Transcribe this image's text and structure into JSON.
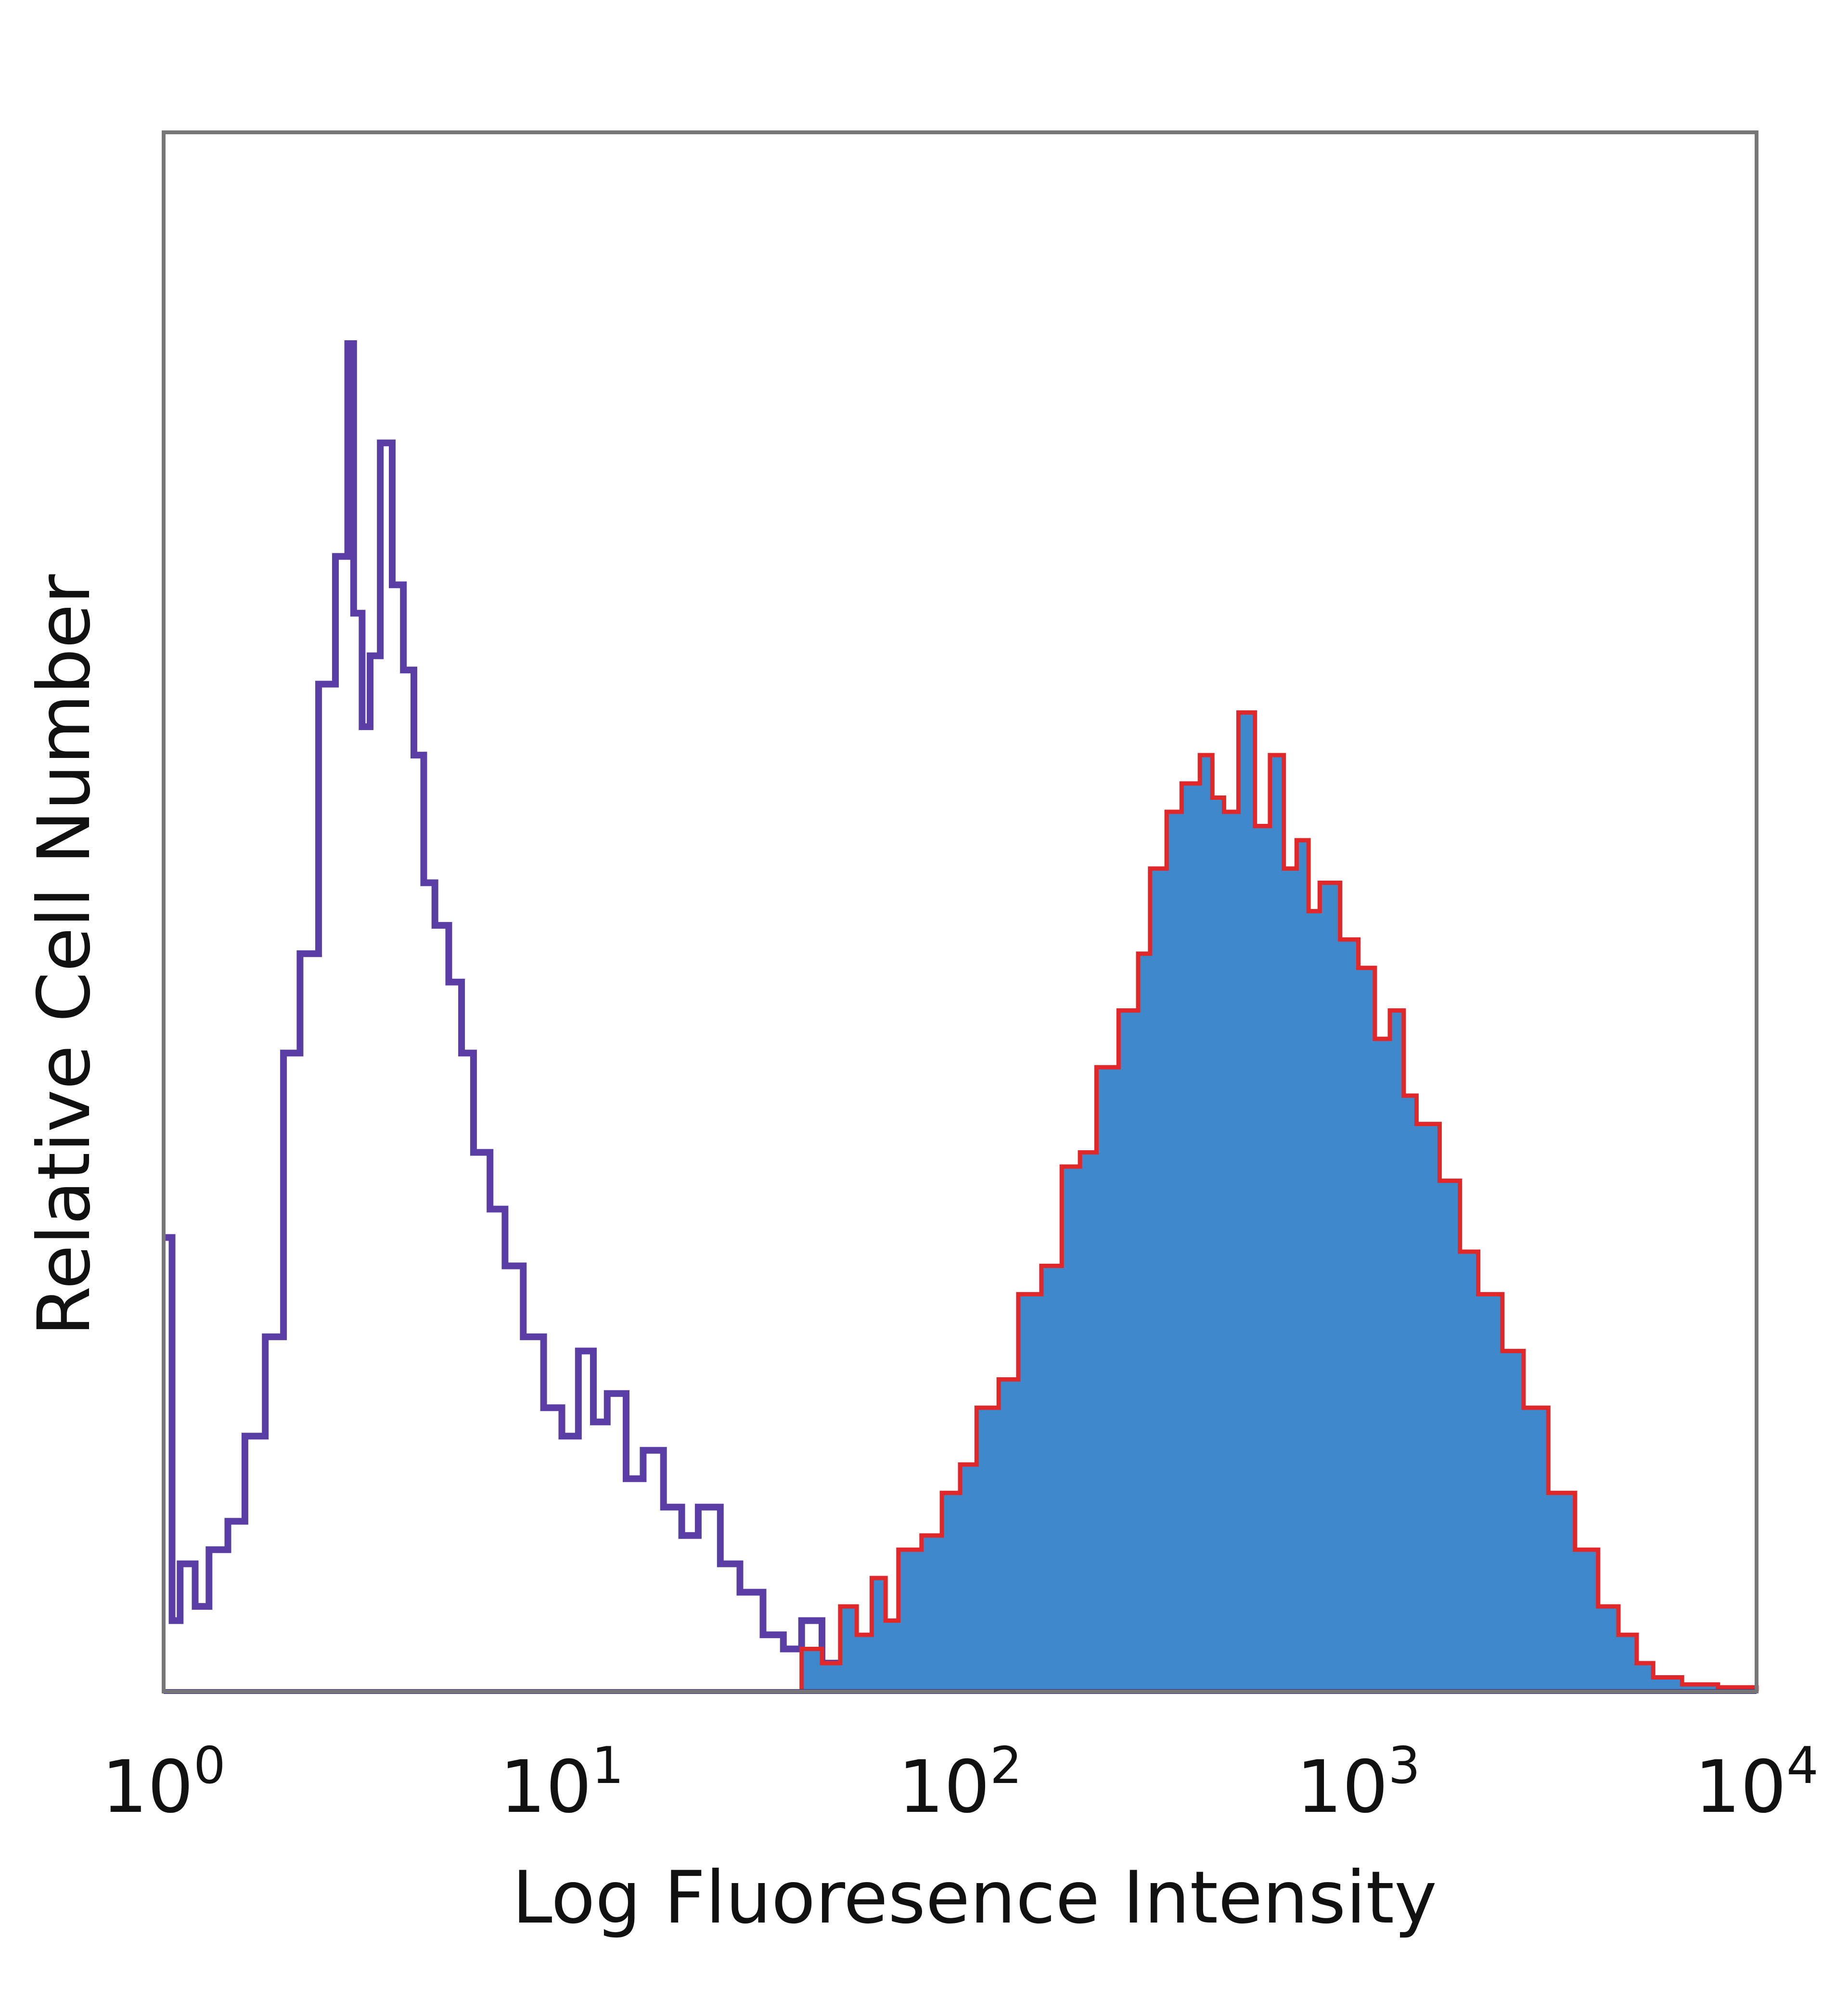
{
  "chart_data": {
    "type": "area",
    "xscale": "log",
    "xlim": [
      1,
      10000
    ],
    "ylim": [
      0,
      1
    ],
    "grid": false,
    "xlabel": "Log Fluoresence Intensity",
    "ylabel": "Relative Cell Number",
    "x_ticks": [
      {
        "value": 1,
        "base": "10",
        "exp": "0"
      },
      {
        "value": 10,
        "base": "10",
        "exp": "1"
      },
      {
        "value": 100,
        "base": "10",
        "exp": "2"
      },
      {
        "value": 1000,
        "base": "10",
        "exp": "3"
      },
      {
        "value": 10000,
        "base": "10",
        "exp": "4"
      }
    ],
    "series": [
      {
        "style": "outline",
        "color": "#5a3ea6",
        "x": [
          1.0,
          1.05,
          1.1,
          1.2,
          1.3,
          1.45,
          1.6,
          1.8,
          2.0,
          2.2,
          2.45,
          2.7,
          2.9,
          3.0,
          3.15,
          3.3,
          3.5,
          3.75,
          4.0,
          4.25,
          4.5,
          4.8,
          5.2,
          5.6,
          6.0,
          6.6,
          7.2,
          8.0,
          9.0,
          10.0,
          11.0,
          12.0,
          13.0,
          14.5,
          16.0,
          18.0,
          20.0,
          22.0,
          25.0,
          28.0,
          32.0,
          36.0,
          40.0,
          45.0,
          50.0,
          60.0,
          70.0,
          100.0
        ],
        "y": [
          0.32,
          0.05,
          0.09,
          0.06,
          0.1,
          0.12,
          0.18,
          0.25,
          0.45,
          0.52,
          0.71,
          0.8,
          0.95,
          0.76,
          0.68,
          0.73,
          0.88,
          0.78,
          0.72,
          0.66,
          0.57,
          0.54,
          0.5,
          0.45,
          0.38,
          0.34,
          0.3,
          0.25,
          0.2,
          0.18,
          0.24,
          0.19,
          0.21,
          0.15,
          0.17,
          0.13,
          0.11,
          0.13,
          0.09,
          0.07,
          0.04,
          0.03,
          0.05,
          0.02,
          0.01,
          0.005,
          0.003,
          0.0
        ]
      },
      {
        "style": "filled",
        "color": "#3f88cc",
        "edge_color": "#e0282a",
        "x": [
          35,
          40,
          45,
          50,
          55,
          60,
          65,
          70,
          80,
          90,
          100,
          110,
          125,
          140,
          160,
          180,
          200,
          220,
          250,
          280,
          300,
          330,
          360,
          400,
          430,
          460,
          500,
          550,
          600,
          650,
          700,
          750,
          800,
          900,
          1000,
          1100,
          1200,
          1300,
          1400,
          1600,
          1800,
          2000,
          2300,
          2600,
          3000,
          3500,
          4000,
          4500,
          5000,
          5500,
          6500,
          8000,
          10000
        ],
        "y": [
          0.0,
          0.03,
          0.02,
          0.06,
          0.04,
          0.08,
          0.05,
          0.1,
          0.11,
          0.14,
          0.16,
          0.2,
          0.22,
          0.28,
          0.3,
          0.37,
          0.38,
          0.44,
          0.48,
          0.52,
          0.58,
          0.62,
          0.64,
          0.66,
          0.63,
          0.62,
          0.69,
          0.61,
          0.66,
          0.58,
          0.6,
          0.55,
          0.57,
          0.53,
          0.51,
          0.46,
          0.48,
          0.42,
          0.4,
          0.36,
          0.31,
          0.28,
          0.24,
          0.2,
          0.14,
          0.1,
          0.06,
          0.04,
          0.02,
          0.01,
          0.005,
          0.003,
          0.0
        ]
      }
    ]
  }
}
